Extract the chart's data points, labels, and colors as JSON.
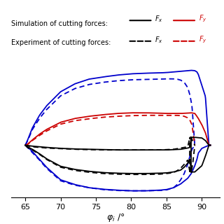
{
  "xlabel": "$\\varphi_i$ /°",
  "xlim": [
    63.0,
    92.5
  ],
  "ylim": [
    -160,
    310
  ],
  "xticks": [
    65,
    70,
    75,
    80,
    85,
    90
  ],
  "legend_sim": "Simulation of cutting forces:",
  "legend_exp": "Experiment of cutting forces:",
  "black_color": "#000000",
  "red_color": "#cc0000",
  "blue_color": "#0000cc",
  "blue_sim_top": {
    "x": [
      65.0,
      65.3,
      66,
      67,
      68,
      70,
      72,
      74,
      76,
      78,
      80,
      82,
      84,
      85,
      86,
      87,
      88,
      88.5,
      89,
      89.3,
      89.5,
      90,
      90.5,
      91,
      91.2
    ],
    "y": [
      5,
      20,
      60,
      100,
      130,
      175,
      200,
      215,
      222,
      228,
      232,
      234,
      235,
      236,
      238,
      240,
      242,
      243,
      242,
      238,
      230,
      195,
      160,
      5,
      5
    ]
  },
  "blue_sim_bot": {
    "x": [
      65.0,
      65.3,
      66,
      67,
      68,
      70,
      72,
      74,
      76,
      78,
      80,
      82,
      84,
      85,
      86,
      87,
      88,
      88.5,
      89,
      89.3,
      89.5,
      90,
      90.5,
      91,
      91.2
    ],
    "y": [
      5,
      0,
      -15,
      -40,
      -65,
      -105,
      -120,
      -130,
      -135,
      -138,
      -140,
      -140,
      -138,
      -136,
      -130,
      -118,
      -100,
      -85,
      -60,
      -40,
      -20,
      -5,
      0,
      5,
      5
    ]
  },
  "blue_exp_top": {
    "x": [
      65.0,
      65.3,
      66,
      67,
      68,
      70,
      72,
      74,
      76,
      78,
      80,
      82,
      84,
      85,
      86,
      86.5,
      87,
      87.5,
      88,
      88.3,
      88.6,
      89.0
    ],
    "y": [
      5,
      18,
      55,
      90,
      118,
      162,
      185,
      198,
      205,
      210,
      213,
      214,
      215,
      216,
      216,
      215,
      212,
      205,
      188,
      165,
      130,
      5
    ]
  },
  "blue_exp_bot": {
    "x": [
      65.0,
      65.3,
      66,
      67,
      68,
      70,
      72,
      74,
      76,
      78,
      80,
      82,
      84,
      85,
      86,
      86.5,
      87,
      87.5,
      88,
      88.3,
      88.6,
      89.0
    ],
    "y": [
      5,
      -2,
      -18,
      -42,
      -68,
      -108,
      -122,
      -130,
      -136,
      -139,
      -140,
      -140,
      -139,
      -137,
      -130,
      -120,
      -105,
      -85,
      -55,
      -30,
      -8,
      5
    ]
  },
  "red_sim": {
    "x": [
      65.0,
      65.3,
      66,
      67,
      68,
      70,
      72,
      74,
      76,
      78,
      80,
      82,
      84,
      85,
      86,
      87,
      88,
      88.5,
      89,
      89.2,
      89.5,
      90,
      90.5,
      91,
      91.2
    ],
    "y": [
      5,
      8,
      22,
      40,
      55,
      78,
      90,
      97,
      102,
      106,
      108,
      108,
      107,
      106,
      106,
      106,
      107,
      108,
      106,
      100,
      90,
      70,
      45,
      5,
      5
    ]
  },
  "red_exp": {
    "x": [
      65.0,
      65.3,
      66,
      67,
      68,
      70,
      72,
      74,
      76,
      78,
      80,
      82,
      84,
      85,
      86,
      86.5,
      87,
      87.5,
      88,
      88.3,
      88.6,
      89.0
    ],
    "y": [
      5,
      7,
      20,
      36,
      50,
      72,
      83,
      89,
      94,
      97,
      99,
      100,
      100,
      100,
      100,
      100,
      99,
      97,
      92,
      85,
      70,
      5
    ]
  },
  "black_sim_top": {
    "x": [
      65.0,
      65.3,
      66,
      67,
      68,
      70,
      72,
      74,
      76,
      78,
      80,
      82,
      84,
      85,
      86,
      87,
      87.5,
      88,
      88.3,
      88.5,
      89,
      90,
      90.5,
      91,
      91.2
    ],
    "y": [
      5,
      4,
      2,
      0,
      -2,
      -5,
      -7,
      -8,
      -9,
      -10,
      -10,
      -10,
      -10,
      -10,
      -9,
      -8,
      -6,
      -4,
      -2,
      30,
      30,
      28,
      20,
      5,
      5
    ]
  },
  "black_sim_bot": {
    "x": [
      65.0,
      65.3,
      66,
      67,
      68,
      70,
      72,
      74,
      76,
      78,
      80,
      82,
      84,
      85,
      86,
      87,
      87.5,
      88,
      88.3,
      88.5,
      89,
      90,
      90.5,
      91,
      91.2
    ],
    "y": [
      5,
      0,
      -8,
      -22,
      -38,
      -62,
      -72,
      -78,
      -82,
      -84,
      -85,
      -85,
      -84,
      -83,
      -80,
      -74,
      -65,
      -52,
      -38,
      -80,
      -80,
      -60,
      -30,
      5,
      5
    ]
  },
  "black_exp_top": {
    "x": [
      65.0,
      65.3,
      66,
      67,
      68,
      70,
      72,
      74,
      76,
      78,
      80,
      82,
      84,
      85,
      86,
      86.5,
      87,
      87.5,
      88,
      88.3,
      88.5,
      88.7,
      89.0
    ],
    "y": [
      5,
      3,
      0,
      -2,
      -4,
      -6,
      -8,
      -9,
      -10,
      -10,
      -10,
      -10,
      -10,
      -9,
      -8,
      -6,
      -4,
      -2,
      0,
      30,
      30,
      18,
      5
    ]
  },
  "black_exp_bot": {
    "x": [
      65.0,
      65.3,
      66,
      67,
      68,
      70,
      72,
      74,
      76,
      78,
      80,
      82,
      84,
      85,
      86,
      86.5,
      87,
      87.5,
      88,
      88.3,
      88.5,
      88.7,
      89.0
    ],
    "y": [
      5,
      -2,
      -10,
      -24,
      -40,
      -65,
      -75,
      -81,
      -85,
      -87,
      -88,
      -88,
      -87,
      -85,
      -82,
      -76,
      -68,
      -56,
      -42,
      -80,
      -80,
      -55,
      5
    ]
  }
}
